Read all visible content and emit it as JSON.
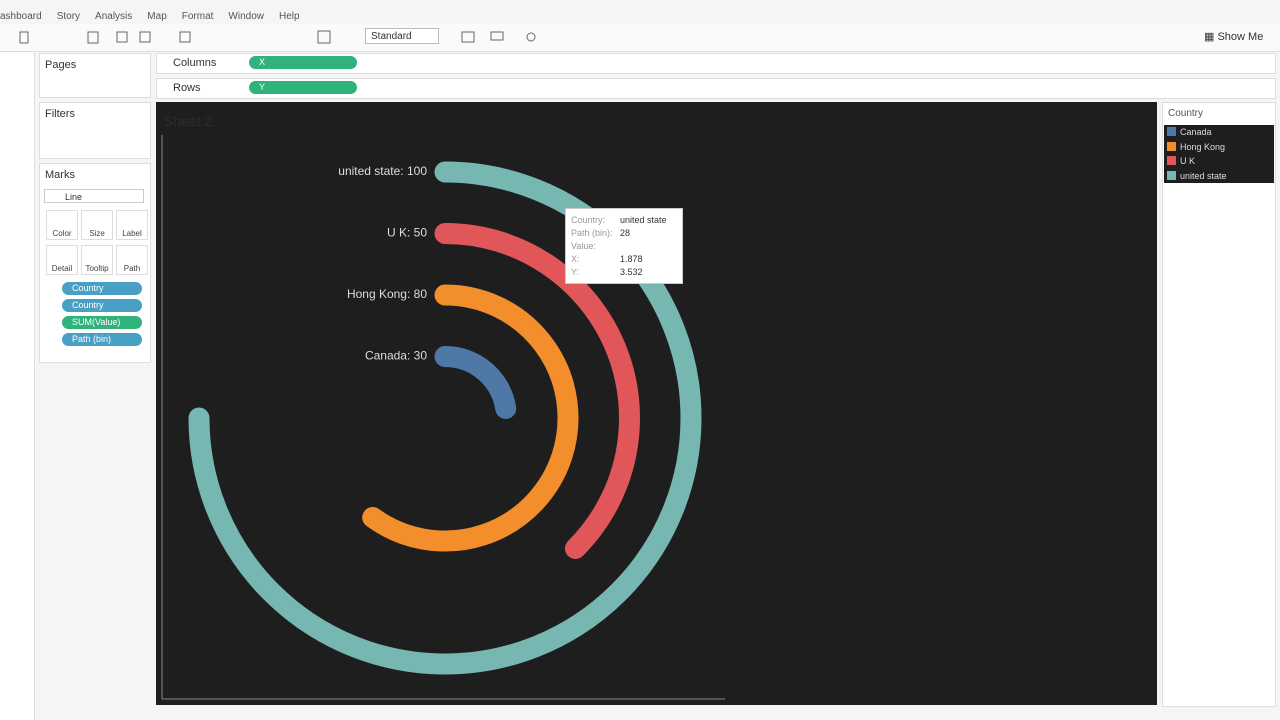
{
  "menu": [
    "ashboard",
    "Story",
    "Analysis",
    "Map",
    "Format",
    "Window",
    "Help"
  ],
  "toolbar": {
    "fit": "Standard",
    "show_me": "Show Me"
  },
  "shelves": {
    "pages": "Pages",
    "filters": "Filters",
    "columns": {
      "label": "Columns",
      "pill": "X"
    },
    "rows": {
      "label": "Rows",
      "pill": "Y"
    }
  },
  "marks": {
    "title": "Marks",
    "mark_type": "Line",
    "buttons": [
      "Color",
      "Size",
      "Label",
      "Detail",
      "Tooltip",
      "Path"
    ],
    "pills": [
      "Country",
      "Country",
      "SUM(Value)",
      "Path (bin)"
    ]
  },
  "sheet_title": "Sheet 2",
  "legend": {
    "title": "Country"
  },
  "chart": {
    "type": "radial-bar",
    "series": [
      {
        "name": "Canada",
        "value": 30,
        "color": "#4e79a7",
        "value_label": "Canada: 30"
      },
      {
        "name": "Hong Kong",
        "value": 80,
        "color": "#f28e2b",
        "value_label": "Hong Kong: 80"
      },
      {
        "name": "U K",
        "value": 50,
        "color": "#e15759",
        "value_label": "U K: 50"
      },
      {
        "name": "united state",
        "value": 100,
        "color": "#76b7b2",
        "value_label": "united state: 100"
      }
    ]
  },
  "tooltip": {
    "rows": [
      {
        "label": "Country:",
        "value": "united state"
      },
      {
        "label": "Path (bin):",
        "value": 28
      },
      {
        "label": "Value:"
      },
      {
        "label": "X:",
        "value": 1.878
      },
      {
        "label": "Y:",
        "value": 3.532
      }
    ]
  }
}
